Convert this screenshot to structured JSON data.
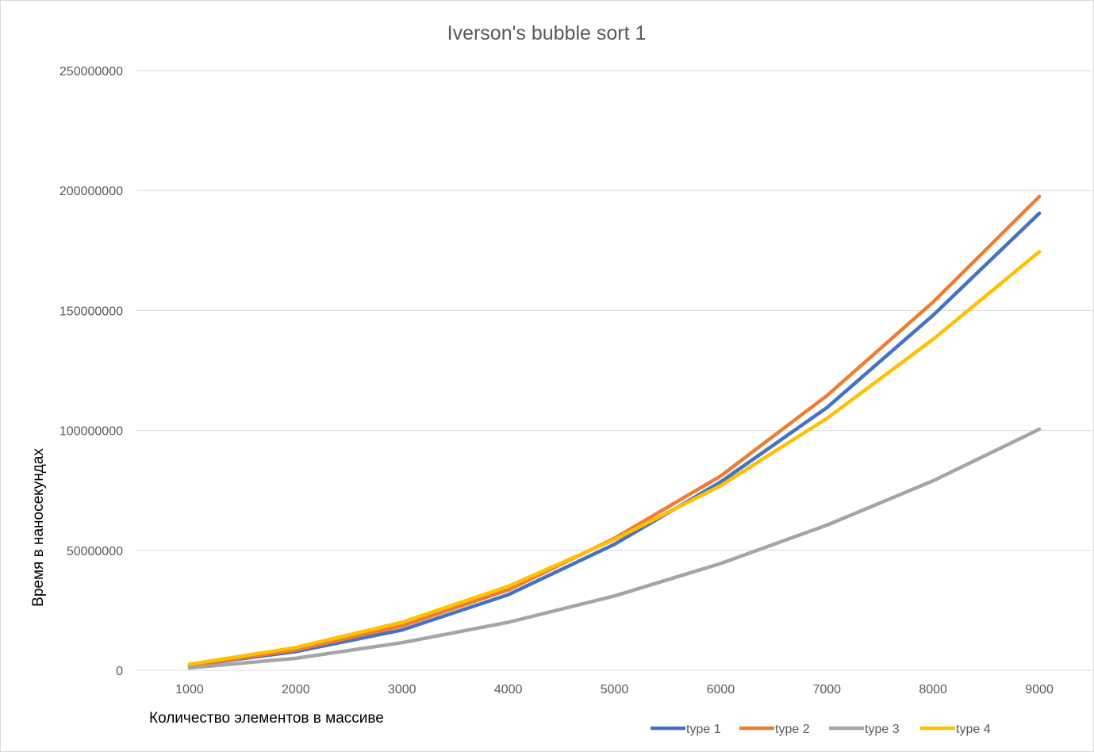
{
  "chart_data": {
    "type": "line",
    "title": "Iverson's bubble sort 1",
    "xlabel": "Количество элементов в массиве",
    "ylabel": "Время в наносекундах",
    "categories": [
      "1000",
      "2000",
      "3000",
      "4000",
      "5000",
      "6000",
      "7000",
      "8000",
      "9000"
    ],
    "y_ticks": [
      "0",
      "50000000",
      "100000000",
      "150000000",
      "200000000",
      "250000000"
    ],
    "ylim": [
      0,
      250000000
    ],
    "grid": true,
    "legend_position": "bottom-right",
    "series": [
      {
        "name": "type 1",
        "color": "#4472C4",
        "values": [
          2000000,
          7800000,
          16800000,
          31500000,
          52500000,
          78500000,
          109500000,
          148000000,
          190500000
        ]
      },
      {
        "name": "type 2",
        "color": "#ED7D31",
        "values": [
          2000000,
          8500000,
          18500000,
          33500000,
          55000000,
          81000000,
          114500000,
          153500000,
          197500000
        ]
      },
      {
        "name": "type 3",
        "color": "#A5A5A5",
        "values": [
          1000000,
          5000000,
          11500000,
          20000000,
          31000000,
          44500000,
          60500000,
          79000000,
          100500000
        ]
      },
      {
        "name": "type 4",
        "color": "#FFC000",
        "values": [
          2500000,
          9500000,
          20000000,
          35000000,
          54500000,
          77000000,
          105000000,
          138000000,
          174500000
        ]
      }
    ]
  }
}
